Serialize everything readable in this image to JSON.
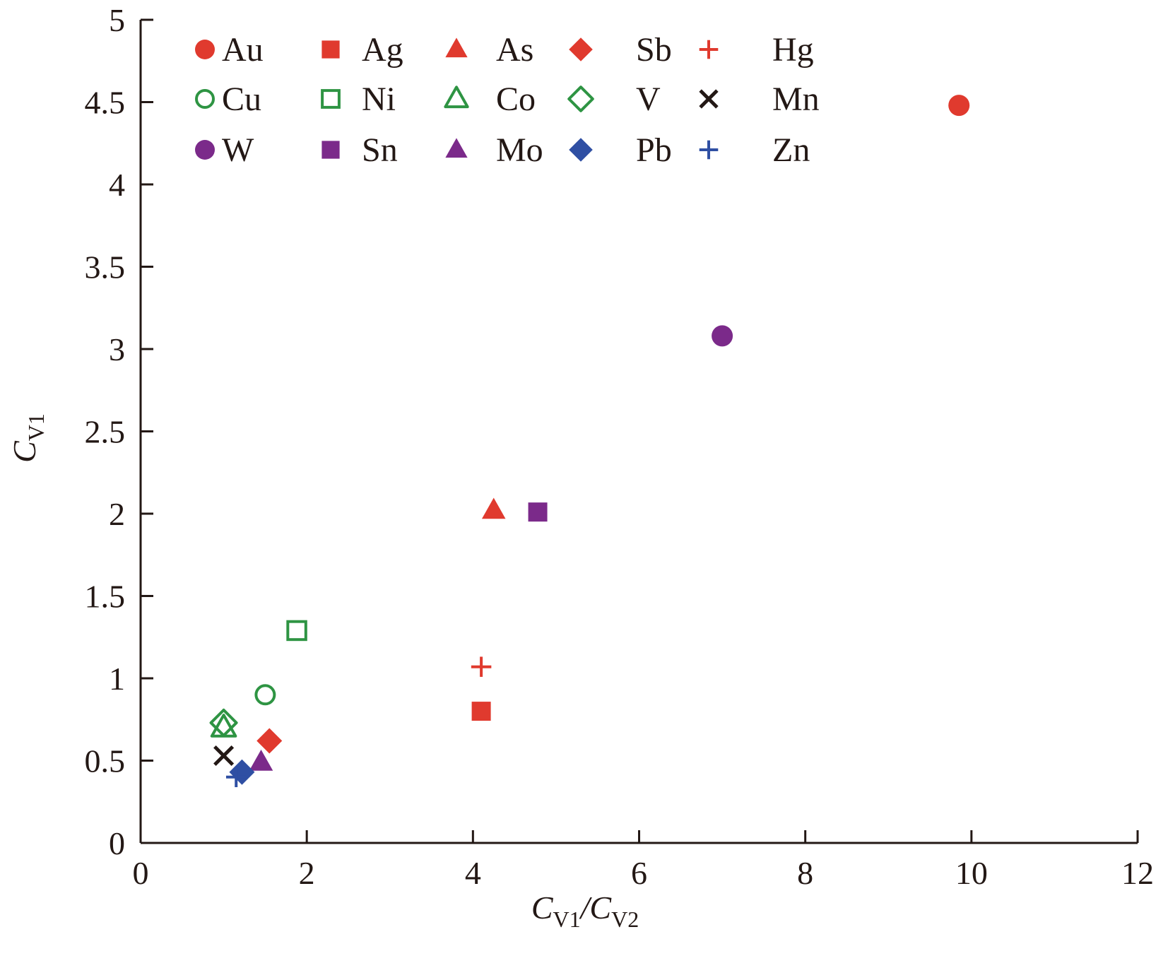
{
  "chart_data": {
    "type": "scatter",
    "title": "",
    "xlabel": "C",
    "xlabel_sub1": "V1",
    "xlabel_sep": "/C",
    "xlabel_sub2": "V2",
    "ylabel": "C",
    "ylabel_sub": "V1",
    "xlim": [
      0,
      12
    ],
    "ylim": [
      0,
      5
    ],
    "xticks": [
      "0",
      "2",
      "4",
      "6",
      "8",
      "10",
      "12"
    ],
    "yticks": [
      "0",
      "0.5",
      "1",
      "1.5",
      "2",
      "2.5",
      "3",
      "3.5",
      "4",
      "4.5",
      "5"
    ],
    "grid": false,
    "legend_placement": "top-left",
    "colors": {
      "red": "#e03a2e",
      "green": "#2e9443",
      "purple": "#7b2a8a",
      "blue": "#2f4fa3",
      "black": "#231815"
    },
    "series": [
      {
        "name": "Au",
        "marker": "circle-filled",
        "color": "red",
        "x": 9.85,
        "y": 4.48
      },
      {
        "name": "Ag",
        "marker": "square-filled",
        "color": "red",
        "x": 4.1,
        "y": 0.8
      },
      {
        "name": "As",
        "marker": "triangle-filled",
        "color": "red",
        "x": 4.25,
        "y": 2.02
      },
      {
        "name": "Sb",
        "marker": "diamond-filled",
        "color": "red",
        "x": 1.55,
        "y": 0.62
      },
      {
        "name": "Hg",
        "marker": "plus",
        "color": "red",
        "x": 4.1,
        "y": 1.07
      },
      {
        "name": "Cu",
        "marker": "circle-open",
        "color": "green",
        "x": 1.5,
        "y": 0.9
      },
      {
        "name": "Ni",
        "marker": "square-open",
        "color": "green",
        "x": 1.88,
        "y": 1.29
      },
      {
        "name": "Co",
        "marker": "triangle-open",
        "color": "green",
        "x": 1.0,
        "y": 0.7
      },
      {
        "name": "V",
        "marker": "diamond-open",
        "color": "green",
        "x": 1.0,
        "y": 0.73
      },
      {
        "name": "Mn",
        "marker": "x",
        "color": "black",
        "x": 1.0,
        "y": 0.53
      },
      {
        "name": "W",
        "marker": "circle-filled",
        "color": "purple",
        "x": 7.0,
        "y": 3.08
      },
      {
        "name": "Sn",
        "marker": "square-filled",
        "color": "purple",
        "x": 4.78,
        "y": 2.01
      },
      {
        "name": "Mo",
        "marker": "triangle-filled",
        "color": "purple",
        "x": 1.45,
        "y": 0.49
      },
      {
        "name": "Pb",
        "marker": "diamond-filled",
        "color": "blue",
        "x": 1.22,
        "y": 0.43
      },
      {
        "name": "Zn",
        "marker": "plus",
        "color": "blue",
        "x": 1.15,
        "y": 0.4
      }
    ]
  }
}
